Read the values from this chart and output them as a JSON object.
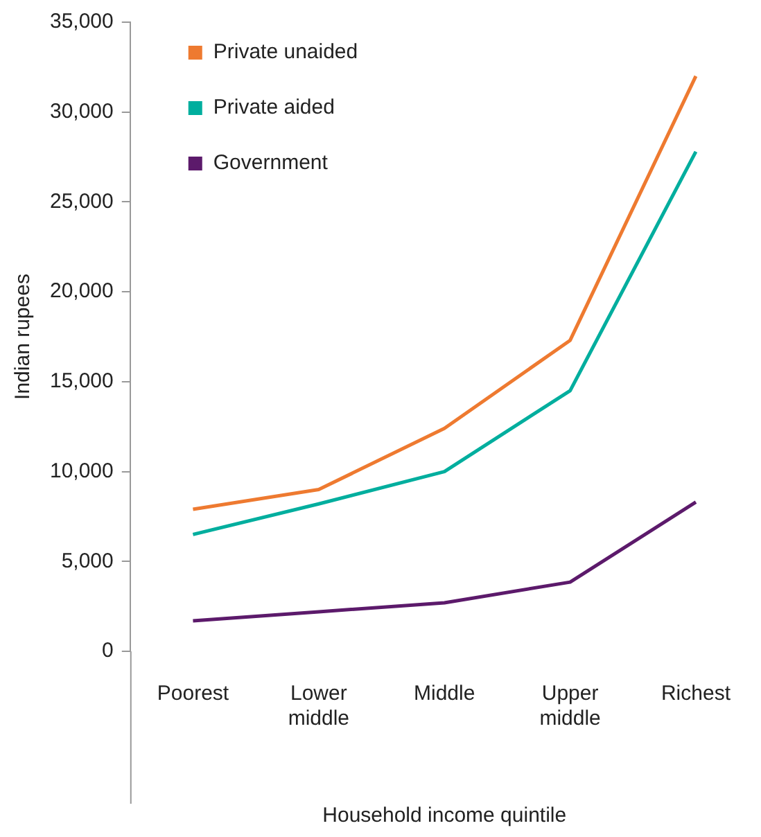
{
  "chart_data": {
    "type": "line",
    "xlabel": "Household income quintile",
    "ylabel": "Indian rupees",
    "categories": [
      "Poorest",
      "Lower middle",
      "Middle",
      "Upper middle",
      "Richest"
    ],
    "series": [
      {
        "name": "Private unaided",
        "color": "#ee7a30",
        "values": [
          7900,
          9000,
          12400,
          17300,
          32000
        ]
      },
      {
        "name": "Private aided",
        "color": "#00ae9e",
        "values": [
          6500,
          8200,
          10000,
          14500,
          27800
        ]
      },
      {
        "name": "Government",
        "color": "#5c1a6b",
        "values": [
          1700,
          2200,
          2700,
          3850,
          8300
        ]
      }
    ],
    "ylim": [
      0,
      35000
    ],
    "yticks": [
      0,
      {
        "value": 5000,
        "label": "5,000"
      },
      {
        "value": 10000,
        "label": "10,000"
      },
      {
        "value": 15000,
        "label": "15,000"
      },
      {
        "value": 20000,
        "label": "20,000"
      },
      {
        "value": 25000,
        "label": "25,000"
      },
      {
        "value": 30000,
        "label": "30,000"
      },
      {
        "value": 35000,
        "label": "35,000"
      }
    ],
    "grid": false,
    "legend": "top left",
    "marker": "none",
    "line_style": "solid"
  }
}
